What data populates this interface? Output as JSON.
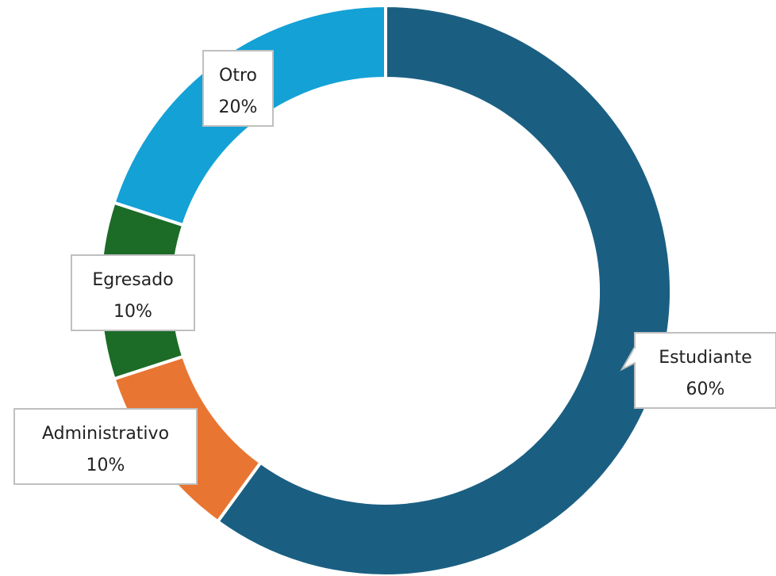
{
  "chart_data": {
    "type": "pie",
    "donut": true,
    "title": "",
    "slices": [
      {
        "name": "Estudiante",
        "value": 60,
        "label": "60%",
        "color": "#1a5f82"
      },
      {
        "name": "Administrativo",
        "value": 10,
        "label": "10%",
        "color": "#e97532"
      },
      {
        "name": "Egresado",
        "value": 10,
        "label": "10%",
        "color": "#1c6b27"
      },
      {
        "name": "Otro",
        "value": 20,
        "label": "20%",
        "color": "#13a1d6"
      }
    ],
    "legend": "none",
    "data_labels": "callouts"
  }
}
